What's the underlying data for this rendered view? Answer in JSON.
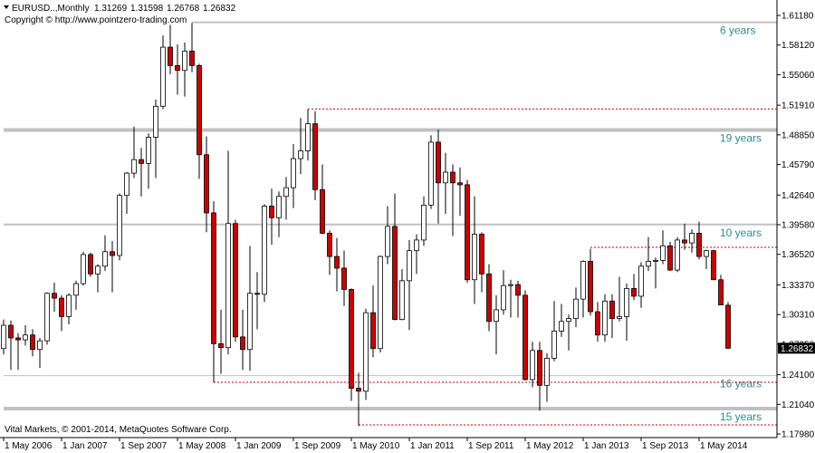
{
  "header": {
    "symbol": "EURUSD..,Monthly",
    "copyright": "Copyright © http://www.pointzero-trading.com"
  },
  "footer": "Vital Markets, © 2001-2014, MetaQuotes Software Corp.",
  "chart_data": {
    "type": "candlestick",
    "open": [
      1.268,
      1.292,
      1.279,
      1.277,
      1.282,
      1.267,
      1.276,
      1.325,
      1.32,
      1.301,
      1.323,
      1.335,
      1.365,
      1.345,
      1.353,
      1.368,
      1.364,
      1.426,
      1.449,
      1.463,
      1.459,
      1.486,
      1.518,
      1.579,
      1.56,
      1.555,
      1.575,
      1.56,
      1.468,
      1.408,
      1.273,
      1.269,
      1.397,
      1.28,
      1.267,
      1.325,
      1.324,
      1.415,
      1.403,
      1.425,
      1.434,
      1.464,
      1.472,
      1.5,
      1.432,
      1.387,
      1.363,
      1.351,
      1.329,
      1.227,
      1.224,
      1.305,
      1.268,
      1.363,
      1.394,
      1.298,
      1.338,
      1.369,
      1.38,
      1.416,
      1.481,
      1.439,
      1.45,
      1.439,
      1.437,
      1.339,
      1.386,
      1.345,
      1.296,
      1.308,
      1.333,
      1.334,
      1.323,
      1.236,
      1.266,
      1.23,
      1.258,
      1.286,
      1.296,
      1.299,
      1.319,
      1.358,
      1.306,
      1.282,
      1.317,
      1.299,
      1.301,
      1.33,
      1.322,
      1.353,
      1.358,
      1.359,
      1.374,
      1.349,
      1.38,
      1.377,
      1.387,
      1.363,
      1.369,
      1.339,
      1.31269
    ],
    "high": [
      1.298,
      1.297,
      1.284,
      1.292,
      1.288,
      1.279,
      1.326,
      1.336,
      1.323,
      1.325,
      1.338,
      1.368,
      1.367,
      1.355,
      1.385,
      1.379,
      1.428,
      1.45,
      1.497,
      1.475,
      1.49,
      1.525,
      1.591,
      1.602,
      1.582,
      1.584,
      1.604,
      1.562,
      1.487,
      1.42,
      1.308,
      1.472,
      1.401,
      1.308,
      1.374,
      1.347,
      1.417,
      1.433,
      1.43,
      1.445,
      1.479,
      1.506,
      1.515,
      1.513,
      1.458,
      1.39,
      1.382,
      1.369,
      1.33,
      1.243,
      1.309,
      1.333,
      1.364,
      1.415,
      1.428,
      1.35,
      1.38,
      1.386,
      1.425,
      1.488,
      1.494,
      1.47,
      1.458,
      1.455,
      1.442,
      1.425,
      1.388,
      1.355,
      1.323,
      1.349,
      1.339,
      1.338,
      1.328,
      1.275,
      1.275,
      1.263,
      1.317,
      1.314,
      1.303,
      1.331,
      1.359,
      1.371,
      1.316,
      1.324,
      1.324,
      1.342,
      1.335,
      1.345,
      1.357,
      1.383,
      1.362,
      1.39,
      1.378,
      1.383,
      1.397,
      1.391,
      1.399,
      1.37,
      1.37,
      1.344,
      1.31598
    ],
    "low": [
      1.262,
      1.246,
      1.246,
      1.271,
      1.26,
      1.248,
      1.272,
      1.306,
      1.286,
      1.293,
      1.308,
      1.333,
      1.342,
      1.326,
      1.348,
      1.326,
      1.359,
      1.407,
      1.444,
      1.425,
      1.433,
      1.444,
      1.515,
      1.551,
      1.53,
      1.528,
      1.553,
      1.443,
      1.388,
      1.233,
      1.242,
      1.262,
      1.275,
      1.246,
      1.245,
      1.288,
      1.316,
      1.375,
      1.383,
      1.401,
      1.413,
      1.448,
      1.462,
      1.421,
      1.386,
      1.344,
      1.327,
      1.312,
      1.214,
      1.188,
      1.215,
      1.259,
      1.264,
      1.355,
      1.297,
      1.297,
      1.287,
      1.345,
      1.374,
      1.412,
      1.397,
      1.407,
      1.384,
      1.405,
      1.336,
      1.314,
      1.326,
      1.286,
      1.262,
      1.303,
      1.3,
      1.3,
      1.235,
      1.228,
      1.204,
      1.213,
      1.255,
      1.28,
      1.266,
      1.29,
      1.3,
      1.302,
      1.275,
      1.275,
      1.279,
      1.296,
      1.276,
      1.318,
      1.31,
      1.348,
      1.33,
      1.355,
      1.348,
      1.347,
      1.37,
      1.367,
      1.36,
      1.35,
      1.339,
      1.313,
      1.26768
    ],
    "close": [
      1.292,
      1.279,
      1.277,
      1.282,
      1.267,
      1.276,
      1.325,
      1.32,
      1.301,
      1.323,
      1.335,
      1.365,
      1.345,
      1.353,
      1.368,
      1.364,
      1.426,
      1.449,
      1.463,
      1.459,
      1.486,
      1.518,
      1.579,
      1.56,
      1.555,
      1.575,
      1.56,
      1.468,
      1.408,
      1.273,
      1.269,
      1.397,
      1.28,
      1.267,
      1.325,
      1.324,
      1.415,
      1.403,
      1.425,
      1.434,
      1.464,
      1.472,
      1.5,
      1.432,
      1.387,
      1.363,
      1.351,
      1.329,
      1.227,
      1.224,
      1.305,
      1.268,
      1.363,
      1.394,
      1.298,
      1.338,
      1.369,
      1.38,
      1.416,
      1.481,
      1.439,
      1.45,
      1.439,
      1.437,
      1.339,
      1.386,
      1.345,
      1.296,
      1.308,
      1.333,
      1.334,
      1.323,
      1.236,
      1.266,
      1.23,
      1.258,
      1.286,
      1.296,
      1.299,
      1.319,
      1.358,
      1.306,
      1.282,
      1.317,
      1.299,
      1.301,
      1.33,
      1.322,
      1.353,
      1.358,
      1.359,
      1.374,
      1.349,
      1.38,
      1.377,
      1.387,
      1.363,
      1.369,
      1.339,
      1.313,
      1.26832
    ],
    "up_color": "#ffffff",
    "down_color": "#cc0000",
    "ylim": [
      1.1761,
      1.623
    ],
    "yticks": [
      {
        "value": 1.6118,
        "label": "1.61180"
      },
      {
        "value": 1.5812,
        "label": "1.58120"
      },
      {
        "value": 1.5506,
        "label": "1.55060"
      },
      {
        "value": 1.5191,
        "label": "1.51910"
      },
      {
        "value": 1.4885,
        "label": "1.48850"
      },
      {
        "value": 1.4579,
        "label": "1.45790"
      },
      {
        "value": 1.4264,
        "label": "1.42640"
      },
      {
        "value": 1.3958,
        "label": "1.39580"
      },
      {
        "value": 1.3652,
        "label": "1.36520"
      },
      {
        "value": 1.3337,
        "label": "1.33370"
      },
      {
        "value": 1.3031,
        "label": "1.30310"
      },
      {
        "value": 1.2725,
        "label": "1.27250"
      },
      {
        "value": 1.241,
        "label": "1.24100"
      },
      {
        "value": 1.2104,
        "label": "1.21040"
      },
      {
        "value": 1.1798,
        "label": "1.17980"
      }
    ],
    "xticks": [
      {
        "value": 0,
        "label": "1 May 2006"
      },
      {
        "value": 8,
        "label": "1 Jan 2007"
      },
      {
        "value": 16,
        "label": "1 Sep 2007"
      },
      {
        "value": 24,
        "label": "1 May 2008"
      },
      {
        "value": 32,
        "label": "1 Jan 2009"
      },
      {
        "value": 40,
        "label": "1 Sep 2009"
      },
      {
        "value": 48,
        "label": "1 May 2010"
      },
      {
        "value": 56,
        "label": "1 Jan 2011"
      },
      {
        "value": 64,
        "label": "1 Sep 2011"
      },
      {
        "value": 72,
        "label": "1 May 2012"
      },
      {
        "value": 80,
        "label": "1 Jan 2013"
      },
      {
        "value": 88,
        "label": "1 Sep 2013"
      },
      {
        "value": 96,
        "label": "1 May 2014"
      }
    ],
    "levels": [
      {
        "value": 1.6047,
        "style": "solid",
        "weight": "light",
        "from": 26,
        "label": "6 years"
      },
      {
        "value": 1.4935,
        "style": "solid",
        "weight": "heavy",
        "from": 0,
        "label": "19 years"
      },
      {
        "value": 1.396,
        "style": "solid",
        "weight": "light",
        "from": 0,
        "label": "10 years"
      },
      {
        "value": 1.24,
        "style": "solid",
        "weight": "thin",
        "from": 0,
        "label": "16 years"
      },
      {
        "value": 1.206,
        "style": "solid",
        "weight": "heavy",
        "from": 0,
        "label": "15 years"
      },
      {
        "value": 1.5153,
        "style": "dotted",
        "weight": "thin",
        "from": 42
      },
      {
        "value": 1.3724,
        "style": "dotted",
        "weight": "thin",
        "from": 81
      },
      {
        "value": 1.2331,
        "style": "dotted",
        "weight": "thin",
        "from": 29
      },
      {
        "value": 1.1892,
        "style": "dotted",
        "weight": "thin",
        "from": 49
      }
    ]
  }
}
